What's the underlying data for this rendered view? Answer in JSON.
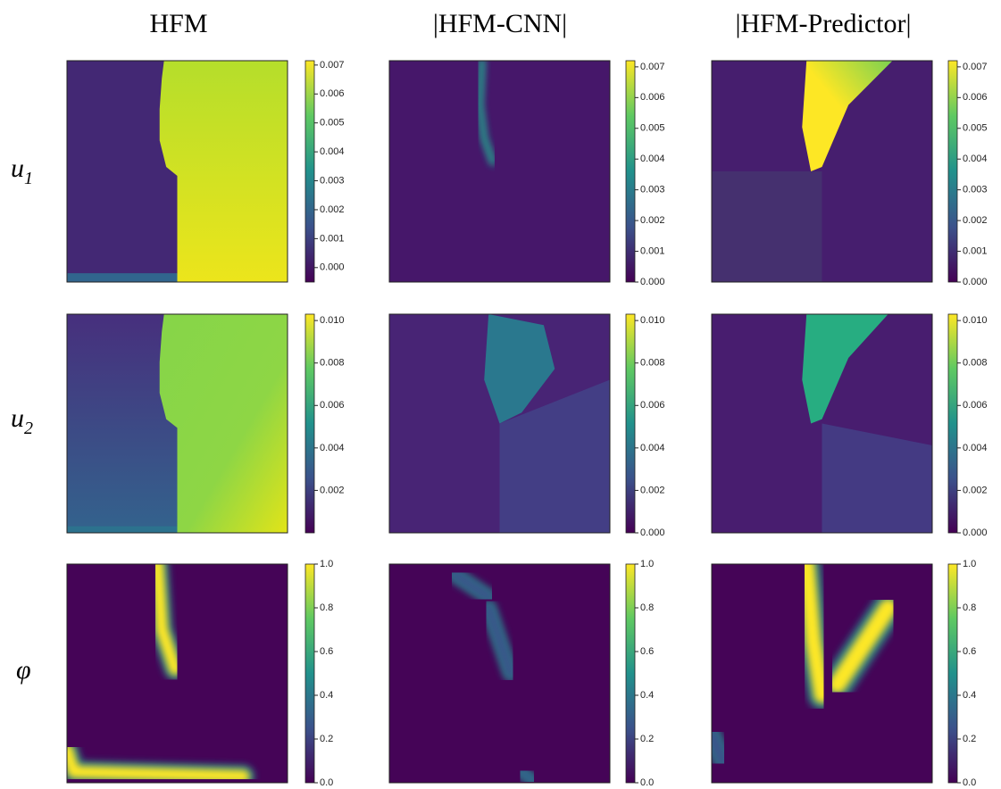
{
  "column_titles": [
    "HFM",
    "|HFM-CNN|",
    "|HFM-Predictor|"
  ],
  "row_labels": [
    {
      "symbol": "u",
      "subscript": "1"
    },
    {
      "symbol": "u",
      "subscript": "2"
    },
    {
      "symbol": "φ"
    }
  ],
  "chart_data": [
    {
      "type": "heatmap",
      "colormap": "viridis",
      "clim": [
        -0.0005,
        0.00715
      ],
      "cticks": [
        {
          "value": 0,
          "label": "0.000"
        },
        0.001,
        0.002,
        0.003,
        0.004,
        0.005,
        0.006,
        0.007
      ]
    },
    {
      "type": "heatmap",
      "colormap": "viridis",
      "clim": [
        0,
        0.0072
      ],
      "cticks": [
        {
          "value": 0,
          "label": "0.000"
        },
        0.001,
        0.002,
        0.003,
        0.004,
        0.005,
        0.006,
        0.007
      ]
    },
    {
      "type": "heatmap",
      "colormap": "viridis",
      "clim": [
        0,
        0.0072
      ],
      "cticks": [
        {
          "value": 0,
          "label": "0.000"
        },
        0.001,
        0.002,
        0.003,
        0.004,
        0.005,
        0.006,
        0.007
      ]
    },
    {
      "type": "heatmap",
      "colormap": "viridis",
      "clim": [
        0,
        0.0103
      ],
      "cticks": [
        0.002,
        0.004,
        0.006,
        0.008,
        {
          "value": 0.01,
          "label": "0.010"
        }
      ]
    },
    {
      "type": "heatmap",
      "colormap": "viridis",
      "clim": [
        0,
        0.0103
      ],
      "cticks": [
        {
          "value": 0,
          "label": "0.000"
        },
        0.002,
        0.004,
        0.006,
        0.008,
        {
          "value": 0.01,
          "label": "0.010"
        }
      ]
    },
    {
      "type": "heatmap",
      "colormap": "viridis",
      "clim": [
        0,
        0.0103
      ],
      "cticks": [
        {
          "value": 0,
          "label": "0.000"
        },
        0.002,
        0.004,
        0.006,
        0.008,
        {
          "value": 0.01,
          "label": "0.010"
        }
      ]
    },
    {
      "type": "heatmap",
      "colormap": "viridis",
      "clim": [
        0,
        1
      ],
      "cticks": [
        {
          "value": 0,
          "label": "0.0"
        },
        0.2,
        0.4,
        0.6,
        0.8,
        {
          "value": 1,
          "label": "1.0"
        }
      ]
    },
    {
      "type": "heatmap",
      "colormap": "viridis",
      "clim": [
        0,
        1
      ],
      "cticks": [
        {
          "value": 0,
          "label": "0.0"
        },
        0.2,
        0.4,
        0.6,
        0.8,
        {
          "value": 1,
          "label": "1.0"
        }
      ]
    },
    {
      "type": "heatmap",
      "colormap": "viridis",
      "clim": [
        0,
        1
      ],
      "cticks": [
        {
          "value": 0,
          "label": "0.0"
        },
        0.2,
        0.4,
        0.6,
        0.8,
        {
          "value": 1,
          "label": "1.0"
        }
      ]
    }
  ]
}
